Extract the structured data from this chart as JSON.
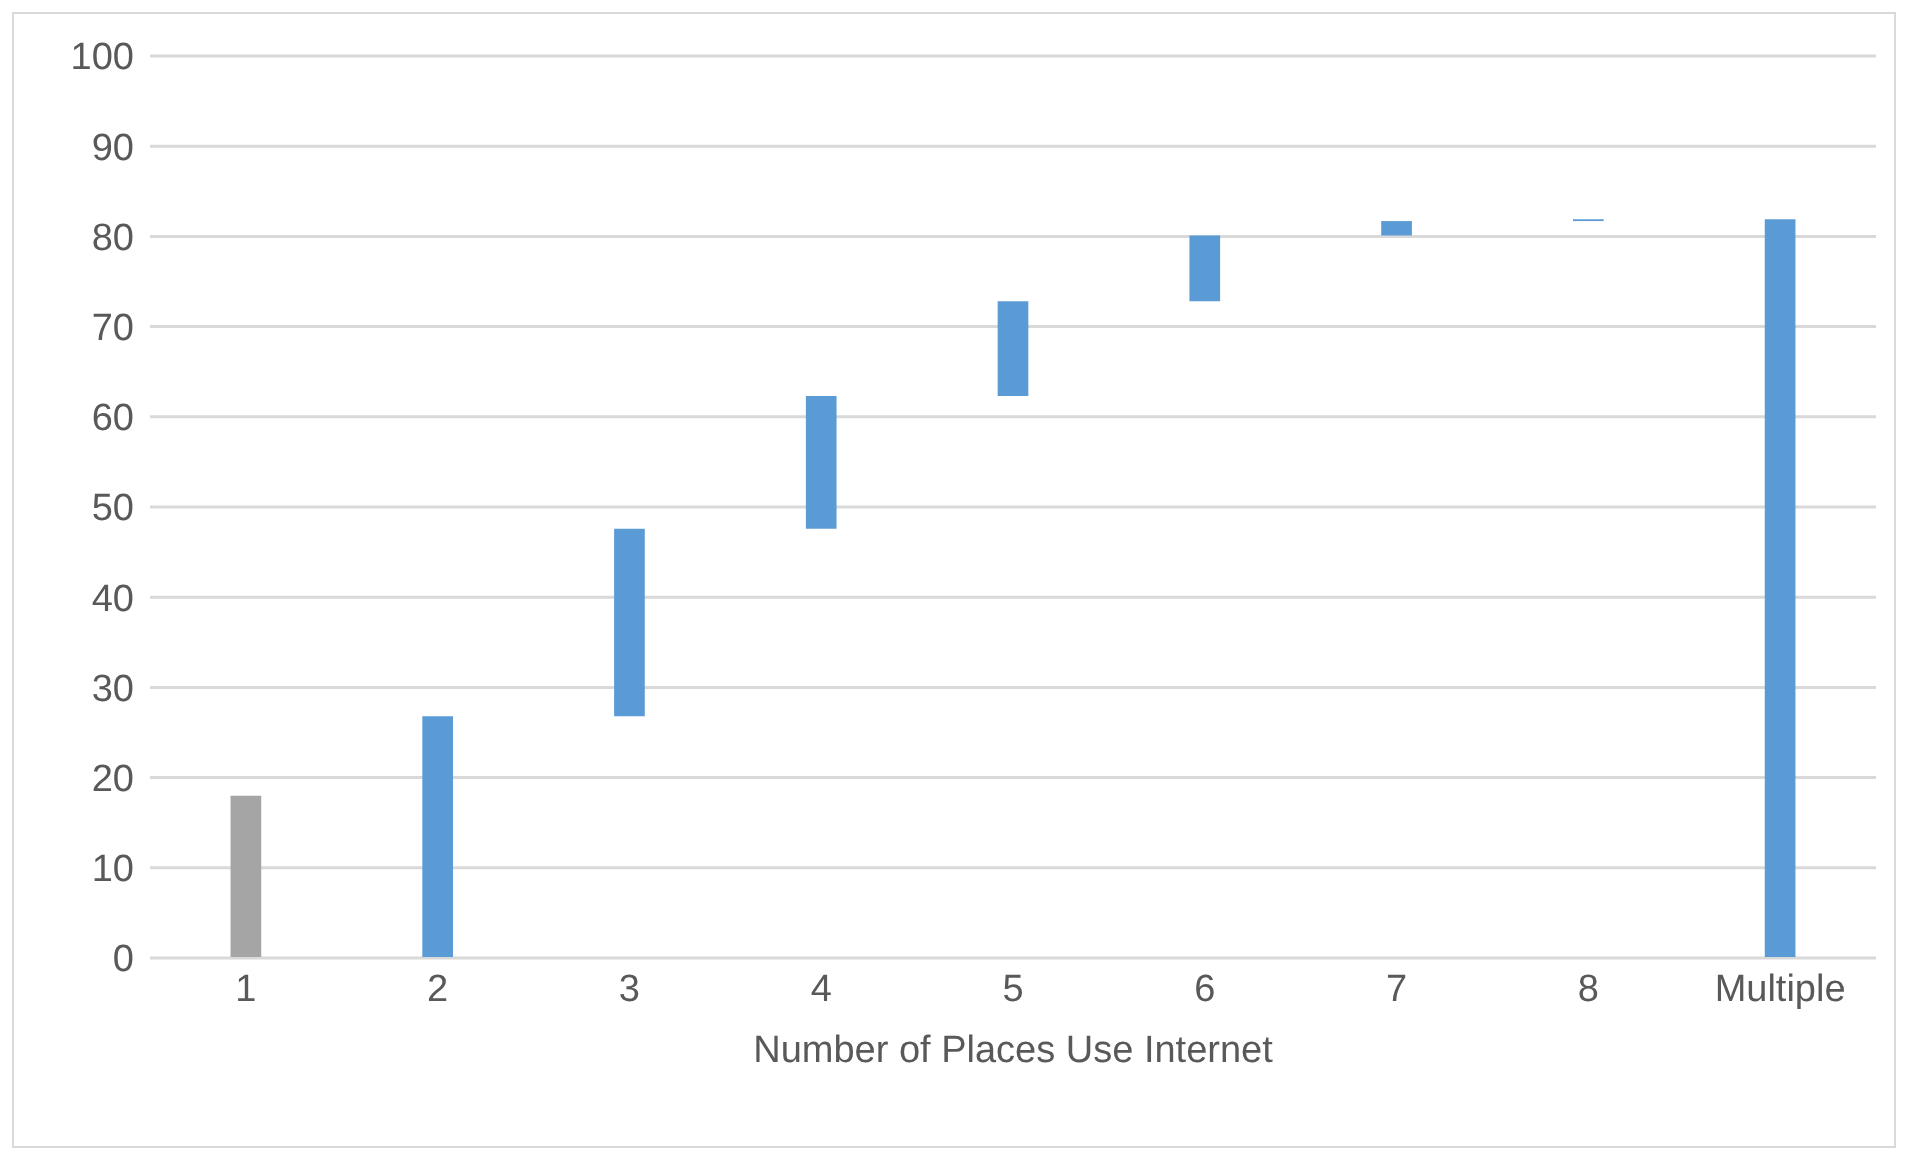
{
  "chart_data": {
    "type": "bar",
    "xlabel": "Number of Places Use Internet",
    "categories": [
      "1",
      "2",
      "3",
      "4",
      "5",
      "6",
      "7",
      "8",
      "Multiple"
    ],
    "base": [
      0,
      0,
      26.8,
      47.6,
      62.3,
      72.8,
      80.1,
      81.7,
      0
    ],
    "values": [
      18.0,
      26.8,
      20.8,
      14.7,
      10.5,
      7.3,
      1.6,
      0.2,
      81.9
    ],
    "colors": [
      "#a5a5a5",
      "#5b9bd5",
      "#5b9bd5",
      "#5b9bd5",
      "#5b9bd5",
      "#5b9bd5",
      "#5b9bd5",
      "#5b9bd5",
      "#5b9bd5"
    ],
    "ylim": [
      0,
      100
    ],
    "yticks": [
      0,
      10,
      20,
      30,
      40,
      50,
      60,
      70,
      80,
      90,
      100
    ],
    "grid": "y"
  }
}
